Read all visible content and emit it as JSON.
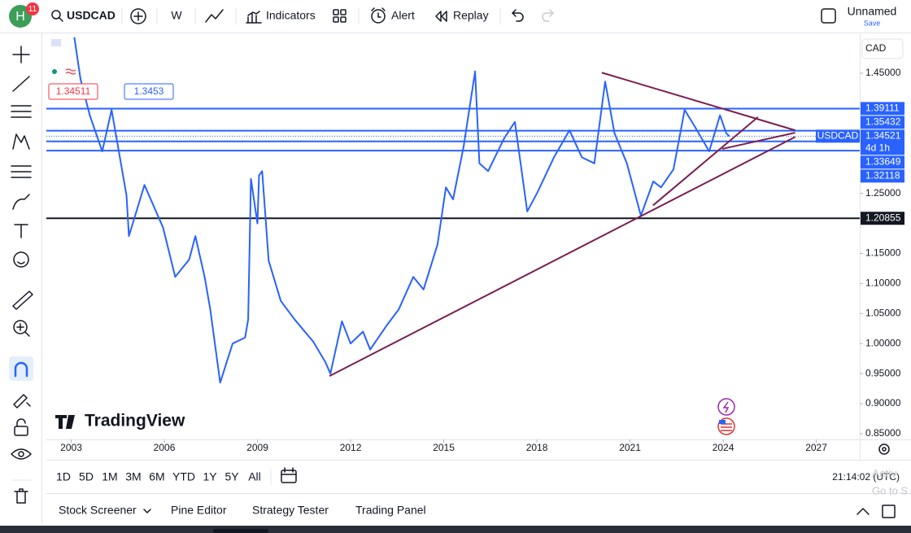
{
  "toolbar": {
    "avatar": "H",
    "badge": "11",
    "symbol": "USDCAD",
    "interval": "W",
    "indicators": "Indicators",
    "alert": "Alert",
    "replay": "Replay",
    "layout_name": "Unnamed",
    "save": "Save"
  },
  "chart_data": {
    "type": "line",
    "currency": "CAD",
    "watermark": "TradingView",
    "xlim": [
      2002.2,
      2028.4
    ],
    "ylim": [
      0.8405,
      1.515
    ],
    "xticks": [
      2003,
      2006,
      2009,
      2012,
      2015,
      2018,
      2021,
      2024,
      2027
    ],
    "yticks": [
      {
        "value": 1.45,
        "label": "1.45000"
      },
      {
        "value": 1.25,
        "label": "1.25000"
      },
      {
        "value": 1.15,
        "label": "1.15000"
      },
      {
        "value": 1.1,
        "label": "1.10000"
      },
      {
        "value": 1.05,
        "label": "1.05000"
      },
      {
        "value": 1.0,
        "label": "1.00000"
      },
      {
        "value": 0.95,
        "label": "0.95000"
      },
      {
        "value": 0.9,
        "label": "0.90000"
      },
      {
        "value": 0.85,
        "label": "0.85000"
      }
    ],
    "series": [
      {
        "name": "USDCAD",
        "color": "#2962ff",
        "x": [
          2003.1,
          2003.3,
          2003.6,
          2004.0,
          2004.3,
          2004.78,
          2004.86,
          2005.36,
          2005.96,
          2006.35,
          2006.8,
          2007.0,
          2007.3,
          2007.48,
          2007.8,
          2008.2,
          2008.6,
          2008.7,
          2008.79,
          2009.0,
          2009.05,
          2009.15,
          2009.36,
          2009.75,
          2010.2,
          2010.8,
          2011.19,
          2011.35,
          2011.72,
          2012.0,
          2012.4,
          2012.63,
          2013.16,
          2013.55,
          2014.02,
          2014.35,
          2014.8,
          2015.07,
          2015.3,
          2015.64,
          2016.01,
          2016.15,
          2016.43,
          2016.95,
          2017.29,
          2017.69,
          2018.0,
          2018.55,
          2019.05,
          2019.45,
          2019.85,
          2020.2,
          2020.5,
          2020.9,
          2021.35,
          2021.75,
          2022.0,
          2022.4,
          2022.76,
          2023.1,
          2023.55,
          2023.9,
          2024.1,
          2024.2
        ],
        "values": [
          1.51,
          1.44,
          1.38,
          1.32,
          1.389,
          1.247,
          1.179,
          1.264,
          1.193,
          1.111,
          1.14,
          1.179,
          1.11,
          1.057,
          0.935,
          1.0,
          1.01,
          1.04,
          1.274,
          1.2,
          1.28,
          1.287,
          1.138,
          1.071,
          1.04,
          1.003,
          0.969,
          0.95,
          1.037,
          1.0,
          1.02,
          0.99,
          1.03,
          1.057,
          1.111,
          1.09,
          1.165,
          1.26,
          1.24,
          1.328,
          1.453,
          1.3,
          1.287,
          1.342,
          1.369,
          1.22,
          1.25,
          1.31,
          1.355,
          1.31,
          1.3,
          1.436,
          1.35,
          1.3,
          1.213,
          1.27,
          1.26,
          1.29,
          1.389,
          1.36,
          1.32,
          1.38,
          1.35,
          1.345
        ]
      }
    ],
    "last_price": 1.34521,
    "countdown": "4d 1h",
    "bid": 1.34511,
    "ask": 1.3453,
    "levels": [
      {
        "value": 1.39111,
        "color": "#2962ff"
      },
      {
        "value": 1.35432,
        "color": "#2962ff"
      },
      {
        "value": 1.33649,
        "color": "#2962ff"
      },
      {
        "value": 1.32118,
        "color": "#2962ff"
      },
      {
        "value": 1.20855,
        "color": "#131722"
      }
    ],
    "trendlines": [
      {
        "x": [
          2011.32,
          2026.32
        ],
        "y": [
          0.946,
          1.344
        ],
        "color": "#7b1f4f"
      },
      {
        "x": [
          2020.09,
          2026.32
        ],
        "y": [
          1.451,
          1.355
        ],
        "color": "#7b1f4f"
      },
      {
        "x": [
          2021.74,
          2025.12
        ],
        "y": [
          1.23,
          1.377
        ],
        "color": "#7b1f4f"
      },
      {
        "x": [
          2023.97,
          2026.32
        ],
        "y": [
          1.324,
          1.351
        ],
        "color": "#7b1f4f"
      }
    ]
  },
  "range_bar": {
    "ranges": [
      "1D",
      "5D",
      "1M",
      "3M",
      "6M",
      "YTD",
      "1Y",
      "5Y",
      "All"
    ],
    "clock": "21:14:02 (UTC)"
  },
  "panel": {
    "tabs": [
      "Stock Screener",
      "Pine Editor",
      "Strategy Tester",
      "Trading Panel"
    ]
  },
  "overlay": [
    "Activ",
    "Go to S"
  ]
}
